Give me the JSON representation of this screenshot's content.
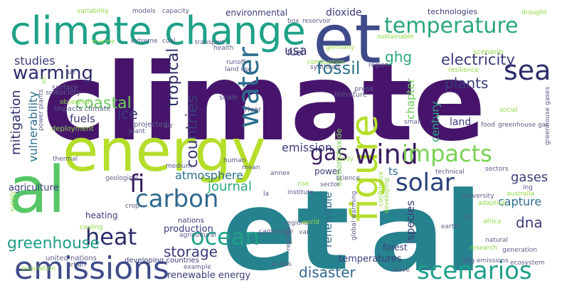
{
  "palette": {
    "purple": "#46156b",
    "deep": "#3b1d5f",
    "indigo": "#443b84",
    "blue": "#3e4b8a",
    "steel": "#31688e",
    "teal": "#26828e",
    "green": "#1fa188",
    "sea": "#2aa67a",
    "lime": "#b5de2b",
    "yellowgreen": "#8fd744",
    "lightgreen": "#6ccd5a"
  },
  "words": {
    "climate": {
      "text": "climate",
      "color": "#46156b"
    },
    "et_big": {
      "text": "et",
      "color": "#26828e"
    },
    "al_big": {
      "text": "al",
      "color": "#26828e"
    },
    "al_left": {
      "text": "al",
      "color": "#56c667"
    },
    "et_top": {
      "text": "et",
      "color": "#3e4b8a"
    },
    "energy": {
      "text": "energy",
      "color": "#b5de2b"
    },
    "climate_change": {
      "text": "climate change",
      "color": "#1fa188"
    },
    "emissions": {
      "text": "emissions",
      "color": "#3e4b8a"
    },
    "figure": {
      "text": "figure",
      "color": "#b5de2b"
    },
    "scenarios": {
      "text": "scenarios",
      "color": "#1f9e89"
    },
    "wind": {
      "text": "wind",
      "color": "#3b1d5f"
    },
    "impacts": {
      "text": "impacts",
      "color": "#7ad151"
    },
    "carbon": {
      "text": "carbon",
      "color": "#31688e"
    },
    "heat": {
      "text": "heat",
      "color": "#2c2c6b"
    },
    "ocean": {
      "text": "ocean",
      "color": "#1fa188"
    },
    "solar": {
      "text": "solar",
      "color": "#2a3f7a"
    },
    "temperature": {
      "text": "temperature",
      "color": "#2aa67a"
    },
    "warming": {
      "text": "warming",
      "color": "#2c2c6b"
    },
    "water": {
      "text": "water",
      "color": "#2c6e8e"
    },
    "sea": {
      "text": "sea",
      "color": "#2c2c6b"
    },
    "electricity": {
      "text": "electricity",
      "color": "#3b3b7a"
    },
    "fossil": {
      "text": "fossil",
      "color": "#2c6e8e"
    },
    "gas": {
      "text": "gas",
      "color": "#3b1d5f"
    },
    "greenhouse": {
      "text": "greenhouse",
      "color": "#1f9e89"
    },
    "storage": {
      "text": "storage",
      "color": "#3b3b7a"
    },
    "disaster": {
      "text": "disaster",
      "color": "#31688e"
    },
    "coastal": {
      "text": "coastal",
      "color": "#6ccd5a"
    },
    "countries": {
      "text": "countries",
      "color": "#3b3b7a"
    },
    "tropical": {
      "text": "tropical",
      "color": "#2c2c6b"
    },
    "plants": {
      "text": "plants",
      "color": "#3b3b7a"
    },
    "ghg": {
      "text": "ghg",
      "color": "#2aa67a"
    },
    "usa": {
      "text": "usa",
      "color": "#3b3b7a"
    },
    "dna": {
      "text": "dna",
      "color": "#3b3b7a"
    },
    "gases": {
      "text": "gases",
      "color": "#3b3b7a"
    },
    "mitigation": {
      "text": "mitigation",
      "color": "#2c2c6b"
    },
    "vulnerability": {
      "text": "vulnerability",
      "color": "#2c6e8e"
    },
    "studies": {
      "text": "studies",
      "color": "#3b3b7a"
    },
    "ice": {
      "text": "ice",
      "color": "#3b3b7a"
    },
    "fuels": {
      "text": "fuels",
      "color": "#3b3b7a"
    },
    "fi": {
      "text": "fi",
      "color": "#3b1d5f"
    },
    "journal": {
      "text": "journal",
      "color": "#2aa67a"
    },
    "atmosphere": {
      "text": "atmosphere",
      "color": "#2c6e8e"
    },
    "emission": {
      "text": "emission",
      "color": "#3b3b7a"
    },
    "chapter": {
      "text": "chapter",
      "color": "#6ccd5a"
    },
    "century": {
      "text": "century",
      "color": "#2aa67a"
    },
    "species": {
      "text": "species",
      "color": "#3b3b7a"
    },
    "renewable": {
      "text": "renewable",
      "color": "#2c6e8e"
    },
    "ts": {
      "text": "ts",
      "color": "#2c6e8e"
    },
    "land": {
      "text": "land",
      "color": "#3b3b7a"
    },
    "dioxide": {
      "text": "dioxide",
      "color": "#3b3b7a"
    },
    "capture": {
      "text": "capture",
      "color": "#2c6e8e"
    },
    "renewable_energy": {
      "text": "renewable energy",
      "color": "#3b3b7a"
    },
    "temperatures": {
      "text": "temperatures",
      "color": "#3b3b7a"
    },
    "power": {
      "text": "power",
      "color": "#3b3b7a"
    },
    "agriculture": {
      "text": "agriculture",
      "color": "#3b3b7a"
    },
    "production": {
      "text": "production",
      "color": "#3b3b7a"
    },
    "heating": {
      "text": "heating",
      "color": "#3b3b7a"
    },
    "environmental": {
      "text": "environmental",
      "color": "#3b3b7a"
    },
    "technologies": {
      "text": "technologies",
      "color": "#3b3b7a"
    },
    "fuel": {
      "text": "fuel",
      "color": "#3b3b7a"
    },
    "forest": {
      "text": "forest",
      "color": "#3b3b7a"
    },
    "carbon_dioxide": {
      "text": "carbon dioxide",
      "color": "#7ad151"
    },
    "developing_countries": {
      "text": "developing countries",
      "color": "#3b3b7a"
    },
    "united_nations": {
      "text": "united nations",
      "color": "#5b5b8a"
    },
    "nations": {
      "text": "nations",
      "color": "#3b3b7a"
    },
    "surface": {
      "text": "surface",
      "color": "#5b5b8a"
    },
    "society": {
      "text": "society",
      "color": "#5b5b8a"
    },
    "impacts_climate": {
      "text": "impacts climate",
      "color": "#5b5b8a"
    },
    "deployment": {
      "text": "deployment",
      "color": "#8fd744"
    },
    "air": {
      "text": "air",
      "color": "#5b5b8a"
    },
    "projected": {
      "text": "projected",
      "color": "#5b5b8a"
    },
    "river": {
      "text": "river",
      "color": "#5b5b8a"
    },
    "scale": {
      "text": "scale",
      "color": "#5b5b8a"
    },
    "literature": {
      "text": "literature",
      "color": "#5b5b8a"
    },
    "press": {
      "text": "press",
      "color": "#5b5b8a"
    },
    "scenario": {
      "text": "scenario",
      "color": "#8fd744"
    },
    "resilience": {
      "text": "resilience",
      "color": "#8fd744"
    },
    "germany": {
      "text": "germany",
      "color": "#8fd744"
    },
    "sustainable": {
      "text": "sustainable",
      "color": "#8fd744"
    },
    "drought": {
      "text": "drought",
      "color": "#8fd744"
    },
    "region": {
      "text": "region",
      "color": "#5b5b8a"
    },
    "synthesis": {
      "text": "synthesis",
      "color": "#5b5b8a"
    },
    "combustion": {
      "text": "combustion",
      "color": "#8fd744"
    },
    "runoff": {
      "text": "runoff",
      "color": "#5b5b8a"
    },
    "land_use": {
      "text": "land use",
      "color": "#5b5b8a"
    },
    "health": {
      "text": "health",
      "color": "#5b5b8a"
    },
    "transport": {
      "text": "transport",
      "color": "#5b5b8a"
    },
    "box": {
      "text": "box",
      "color": "#5b5b8a"
    },
    "reservoir": {
      "text": "reservoir",
      "color": "#5b5b8a"
    },
    "variability": {
      "text": "variability",
      "color": "#8fd744"
    },
    "models": {
      "text": "models",
      "color": "#5b5b8a"
    },
    "capacity": {
      "text": "capacity",
      "color": "#5b5b8a"
    },
    "extreme": {
      "text": "extreme",
      "color": "#5b5b8a"
    },
    "coal": {
      "text": "coal",
      "color": "#5b5b8a"
    },
    "marine": {
      "text": "marine",
      "color": "#8fd744"
    },
    "uk": {
      "text": "uk",
      "color": "#5b5b8a"
    },
    "observed": {
      "text": "observed",
      "color": "#8fd744"
    },
    "soil": {
      "text": "soil",
      "color": "#5b5b8a"
    },
    "oil": {
      "text": "oil",
      "color": "#8fd744"
    },
    "power_plants": {
      "text": "power plants",
      "color": "#5b5b8a"
    },
    "plant": {
      "text": "plant",
      "color": "#5b5b8a"
    },
    "small": {
      "text": "small",
      "color": "#5b5b8a"
    },
    "social": {
      "text": "social",
      "color": "#8fd744"
    },
    "food": {
      "text": "food",
      "color": "#5b5b8a"
    },
    "greenhouse_gas": {
      "text": "greenhouse gas",
      "color": "#5b5b8a"
    },
    "greenhouse_gases": {
      "text": "greenhouse gases",
      "color": "#5b5b8a"
    },
    "technical": {
      "text": "technical",
      "color": "#5b5b8a"
    },
    "sectors": {
      "text": "sectors",
      "color": "#5b5b8a"
    },
    "ing": {
      "text": "ing",
      "color": "#5b5b8a"
    },
    "australia": {
      "text": "australia",
      "color": "#8fd744"
    },
    "university": {
      "text": "university",
      "color": "#5b5b8a"
    },
    "adaptive": {
      "text": "adaptive",
      "color": "#8fd744"
    },
    "ch": {
      "text": "ch",
      "color": "#5b5b8a"
    },
    "africa": {
      "text": "africa",
      "color": "#8fd744"
    },
    "natural": {
      "text": "natural",
      "color": "#5b5b8a"
    },
    "generation": {
      "text": "generation",
      "color": "#5b5b8a"
    },
    "research": {
      "text": "research",
      "color": "#8fd744"
    },
    "ghg_emissions": {
      "text": "ghg emissions",
      "color": "#5b5b8a"
    },
    "ecosystem": {
      "text": "ecosystem",
      "color": "#5b5b8a"
    },
    "wave": {
      "text": "wave",
      "color": "#5b5b8a"
    },
    "earth": {
      "text": "earth",
      "color": "#5b5b8a"
    },
    "ed": {
      "text": "ed",
      "color": "#5b5b8a"
    },
    "developing": {
      "text": "developing",
      "color": "#8fd744"
    },
    "confidence": {
      "text": "confidence",
      "color": "#8fd744"
    },
    "global_warming": {
      "text": "global warming",
      "color": "#5b5b8a"
    },
    "science": {
      "text": "science",
      "color": "#5b5b8a"
    },
    "sector": {
      "text": "sector",
      "color": "#5b5b8a"
    },
    "institute": {
      "text": "institute",
      "color": "#5b5b8a"
    },
    "rise": {
      "text": "rise",
      "color": "#8fd744"
    },
    "regional": {
      "text": "regional",
      "color": "#5b5b8a"
    },
    "regions": {
      "text": "regions",
      "color": "#5b5b8a"
    },
    "annex": {
      "text": "annex",
      "color": "#5b5b8a"
    },
    "study": {
      "text": "study",
      "color": "#8fd744"
    },
    "la": {
      "text": "la",
      "color": "#5b5b8a"
    },
    "mean": {
      "text": "mean",
      "color": "#5b5b8a"
    },
    "human": {
      "text": "human",
      "color": "#5b5b8a"
    },
    "cambridge": {
      "text": "cambridge",
      "color": "#5b5b8a"
    },
    "van": {
      "text": "van",
      "color": "#5b5b8a"
    },
    "world": {
      "text": "world",
      "color": "#8fd744"
    },
    "scales": {
      "text": "scales",
      "color": "#5b5b8a"
    },
    "geological": {
      "text": "geological",
      "color": "#5b5b8a"
    },
    "medium": {
      "text": "medium",
      "color": "#5b5b8a"
    },
    "crop": {
      "text": "crop",
      "color": "#5b5b8a"
    },
    "cooling": {
      "text": "cooling",
      "color": "#8fd744"
    },
    "agricultural": {
      "text": "agricultural",
      "color": "#5b5b8a"
    },
    "urban": {
      "text": "urban",
      "color": "#5b5b8a"
    },
    "population": {
      "text": "population",
      "color": "#8fd744"
    },
    "example": {
      "text": "example",
      "color": "#5b5b8a"
    },
    "thermal": {
      "text": "thermal",
      "color": "#5b5b8a"
    },
    "supply": {
      "text": "supply",
      "color": "#8fd744"
    }
  }
}
